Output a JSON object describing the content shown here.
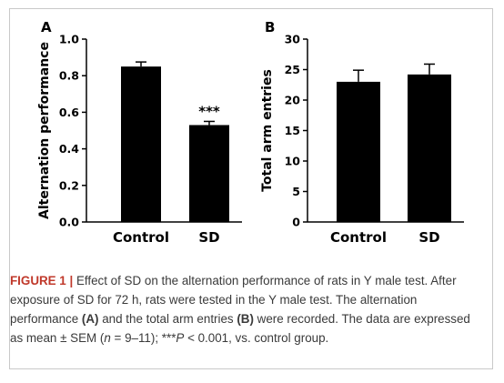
{
  "chart_data": [
    {
      "type": "bar",
      "panel": "A",
      "categories": [
        "Control",
        "SD"
      ],
      "values": [
        0.85,
        0.53
      ],
      "errors": [
        0.025,
        0.02
      ],
      "ylabel": "Alternation performance",
      "ylim": [
        0.0,
        1.0
      ],
      "yticks": [
        "0.0",
        "0.2",
        "0.4",
        "0.6",
        "0.8",
        "1.0"
      ],
      "annotations": [
        {
          "category": "SD",
          "text": "***"
        }
      ]
    },
    {
      "type": "bar",
      "panel": "B",
      "categories": [
        "Control",
        "SD"
      ],
      "values": [
        23.0,
        24.2
      ],
      "errors": [
        1.9,
        1.7
      ],
      "ylabel": "Total arm entries",
      "ylim": [
        0,
        30
      ],
      "yticks": [
        "0",
        "5",
        "10",
        "15",
        "20",
        "25",
        "30"
      ]
    }
  ],
  "caption": {
    "label": "FIGURE 1 |",
    "s1": " Effect of SD on the alternation performance of rats in Y male test. After exposure of SD for 72 h, rats were tested in the Y male test. The alternation performance ",
    "a": "(A)",
    "s2": " and the total arm entries ",
    "b": "(B)",
    "s3": " were recorded. The data are expressed as mean ± SEM (",
    "n": "n",
    "s4": " = 9–11); ***",
    "p": "P",
    "s5": " < 0.001, vs. control group."
  },
  "colors": {
    "bar": "#000000",
    "caption_label": "#c0392b",
    "caption_text": "#3a3a3a",
    "frame": "#c9c9c9"
  }
}
